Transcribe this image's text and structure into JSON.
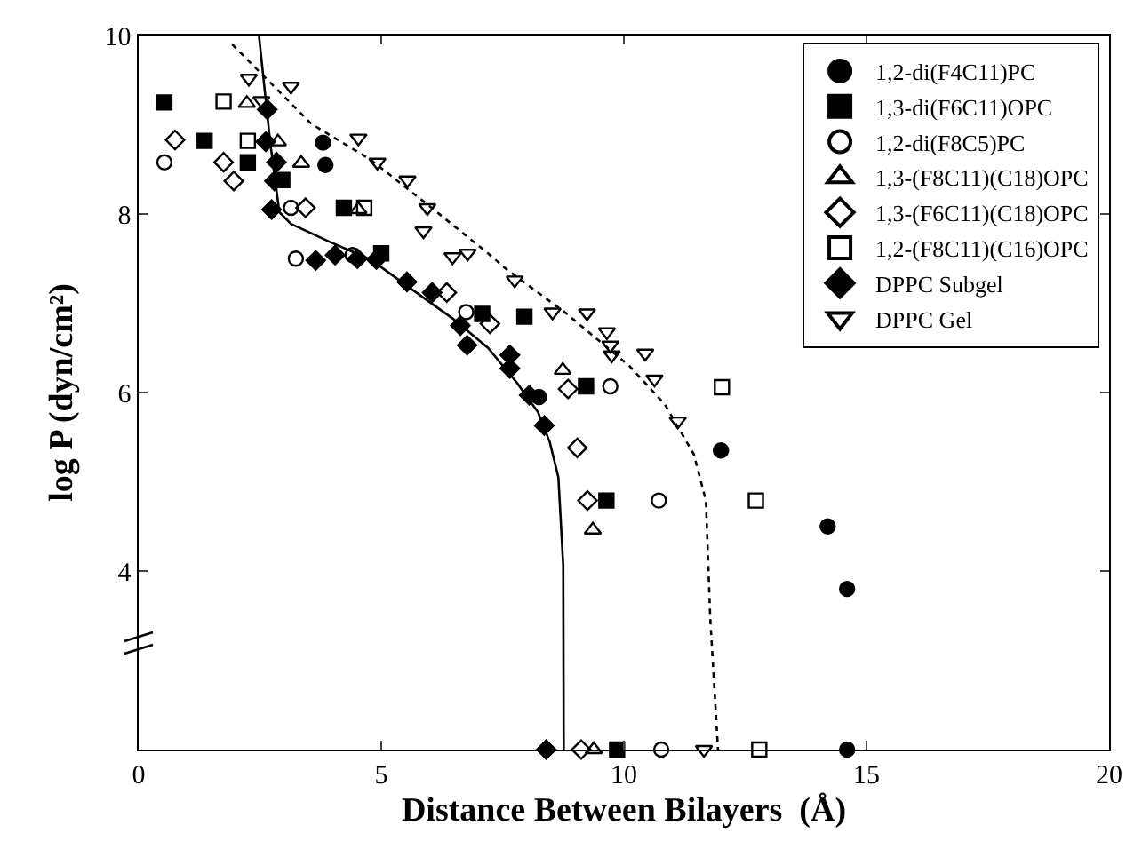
{
  "chart_data": {
    "type": "scatter",
    "xlabel": "Distance Between Bilayers  (Å)",
    "ylabel": "log P (dyn/cm²)",
    "xlim": [
      0,
      20
    ],
    "xticks": [
      0,
      5,
      10,
      15,
      20
    ],
    "ylim": [
      2,
      10
    ],
    "yticks": [
      4,
      6,
      8,
      10
    ],
    "legend": "top right",
    "series": [
      {
        "name": "1,2-di(F4C11)PC",
        "color": "#000000",
        "marker": "circle",
        "x": [
          3.8,
          3.85,
          8.25,
          12.0,
          14.2,
          14.6,
          14.6
        ],
        "values": [
          8.8,
          8.55,
          5.95,
          5.35,
          4.5,
          3.8,
          2
        ]
      },
      {
        "name": "1,3-di(F6C11)OPC",
        "color": "#000000",
        "marker": "square",
        "x": [
          0.53,
          1.36,
          2.25,
          2.96,
          4.23,
          5.0,
          7.08,
          7.95,
          9.22,
          9.64,
          9.86
        ],
        "values": [
          9.25,
          8.82,
          8.58,
          8.38,
          8.07,
          7.56,
          6.88,
          6.85,
          6.07,
          4.79,
          2
        ]
      },
      {
        "name": "1,2-di(F8C5)PC",
        "color": "#000000",
        "marker": "circle-open",
        "x": [
          0.53,
          3.14,
          3.24,
          4.41,
          6.75,
          9.72,
          10.72,
          10.77
        ],
        "values": [
          8.58,
          8.07,
          7.5,
          7.54,
          6.9,
          6.07,
          4.79,
          2
        ]
      },
      {
        "name": "1,3-(F8C11)(C18)OPC",
        "color": "#000000",
        "marker": "triangle-open",
        "x": [
          2.23,
          2.87,
          3.35,
          4.53,
          8.74,
          9.36,
          9.38
        ],
        "values": [
          9.24,
          8.81,
          8.57,
          8.05,
          6.25,
          4.46,
          2
        ]
      },
      {
        "name": "1,3-(F6C11)(C18)OPC",
        "color": "#000000",
        "marker": "diamond-open",
        "x": [
          0.75,
          1.75,
          1.96,
          3.44,
          6.35,
          7.24,
          8.85,
          9.04,
          9.25,
          9.12
        ],
        "values": [
          8.83,
          8.58,
          8.37,
          8.07,
          7.12,
          6.77,
          6.04,
          5.38,
          4.79,
          2
        ]
      },
      {
        "name": "1,2-(F8C11)(C16)OPC",
        "color": "#000000",
        "marker": "square-open",
        "x": [
          1.75,
          2.25,
          4.65,
          12.02,
          12.72,
          12.79
        ],
        "values": [
          9.26,
          8.82,
          8.07,
          6.06,
          4.79,
          2
        ]
      },
      {
        "name": "DPPC Subgel",
        "color": "#000000",
        "marker": "diamond",
        "x": [
          2.65,
          2.62,
          2.84,
          2.8,
          2.74,
          3.65,
          4.05,
          4.51,
          4.9,
          5.53,
          6.05,
          6.63,
          6.77,
          7.65,
          7.65,
          8.05,
          8.36,
          8.4
        ],
        "values": [
          9.17,
          8.81,
          8.58,
          8.37,
          8.05,
          7.48,
          7.54,
          7.5,
          7.49,
          7.24,
          7.12,
          6.75,
          6.53,
          6.42,
          6.27,
          5.97,
          5.63,
          2
        ]
      },
      {
        "name": "DPPC Gel",
        "color": "#000000",
        "marker": "triangle-down-open",
        "x": [
          2.27,
          3.14,
          2.53,
          4.53,
          4.92,
          5.54,
          5.95,
          5.87,
          6.47,
          6.78,
          7.75,
          8.53,
          9.24,
          9.65,
          9.72,
          9.75,
          10.44,
          10.63,
          11.11,
          11.65
        ],
        "values": [
          9.52,
          9.43,
          9.27,
          8.85,
          8.58,
          8.38,
          8.07,
          7.81,
          7.52,
          7.56,
          7.26,
          6.9,
          6.89,
          6.68,
          6.53,
          6.42,
          6.44,
          6.15,
          5.68,
          2
        ]
      },
      {
        "type": "line",
        "color": "#000000",
        "line_style": "solid",
        "marker": "none",
        "x": [
          2.48,
          2.71,
          2.9,
          3.14,
          3.93,
          4.78,
          5.62,
          6.47,
          7.2,
          7.81,
          8.23,
          8.47,
          8.65,
          8.75,
          8.76
        ],
        "values": [
          10,
          8.81,
          8.02,
          7.89,
          7.69,
          7.49,
          7.16,
          6.83,
          6.5,
          6.1,
          5.78,
          5.45,
          5.05,
          4.06,
          2
        ]
      },
      {
        "type": "line",
        "color": "#000000",
        "line_style": "dotted",
        "marker": "none",
        "x": [
          1.93,
          3.56,
          4.78,
          5.99,
          7.2,
          7.56,
          8.78,
          10.11,
          10.84,
          11.44,
          11.69,
          11.78,
          11.94
        ],
        "values": [
          9.9,
          9.01,
          8.61,
          8.09,
          7.56,
          7.39,
          6.9,
          6.3,
          5.87,
          5.31,
          4.79,
          3.47,
          2
        ]
      }
    ]
  }
}
